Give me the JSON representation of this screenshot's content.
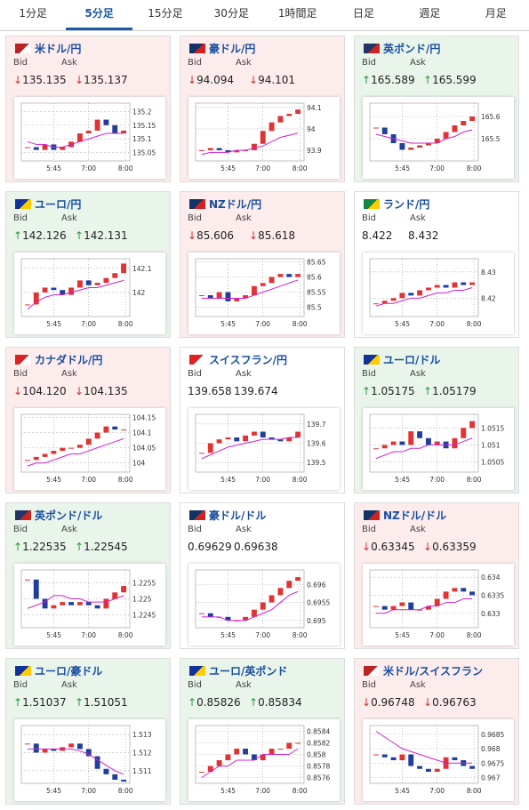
{
  "tabs": [
    "1分足",
    "5分足",
    "15分足",
    "30分足",
    "1時間足",
    "日足",
    "週足",
    "月足"
  ],
  "active_tab": 1,
  "bid_label": "Bid",
  "ask_label": "Ask",
  "chart_xticks": [
    "5:45",
    "7:00",
    "8:00"
  ],
  "panels": [
    {
      "pair": "米ドル/円",
      "trend": "down",
      "arrow": "↓",
      "bid": "135.135",
      "ask": "135.137",
      "ylim": [
        135.02,
        135.23
      ],
      "yticks": [
        135.05,
        135.1,
        135.15,
        135.2
      ],
      "values": [
        135.07,
        135.06,
        135.08,
        135.06,
        135.07,
        135.09,
        135.12,
        135.13,
        135.17,
        135.15,
        135.12,
        135.13
      ],
      "ma": [
        135.09,
        135.08,
        135.08,
        135.07,
        135.07,
        135.08,
        135.09,
        135.1,
        135.11,
        135.12,
        135.12,
        135.12
      ]
    },
    {
      "pair": "豪ドル/円",
      "trend": "down",
      "arrow": "↓",
      "bid": "94.094",
      "ask": "94.101",
      "ylim": [
        93.85,
        94.12
      ],
      "yticks": [
        93.9,
        94,
        94.1
      ],
      "values": [
        93.9,
        93.91,
        93.9,
        93.89,
        93.9,
        93.9,
        93.93,
        93.99,
        94.03,
        94.06,
        94.07,
        94.09
      ],
      "ma": [
        93.88,
        93.89,
        93.89,
        93.89,
        93.9,
        93.9,
        93.91,
        93.92,
        93.94,
        93.96,
        93.97,
        93.98
      ]
    },
    {
      "pair": "英ポンド/円",
      "trend": "up",
      "arrow": "↑",
      "bid": "165.589",
      "ask": "165.599",
      "ylim": [
        165.4,
        165.66
      ],
      "yticks": [
        165.5,
        165.6
      ],
      "values": [
        165.55,
        165.52,
        165.48,
        165.45,
        165.46,
        165.47,
        165.48,
        165.5,
        165.53,
        165.56,
        165.58,
        165.6
      ],
      "ma": [
        165.52,
        165.51,
        165.5,
        165.49,
        165.48,
        165.48,
        165.48,
        165.48,
        165.5,
        165.51,
        165.53,
        165.54
      ]
    },
    {
      "pair": "ユーロ/円",
      "trend": "up",
      "arrow": "↑",
      "bid": "142.126",
      "ask": "142.131",
      "ylim": [
        141.9,
        142.14
      ],
      "yticks": [
        142,
        142.1
      ],
      "values": [
        141.95,
        142,
        142.02,
        142.01,
        141.99,
        142.02,
        142.05,
        142.03,
        142.04,
        142.06,
        142.08,
        142.12
      ],
      "ma": [
        141.93,
        141.96,
        141.98,
        141.99,
        141.99,
        142,
        142.01,
        142.02,
        142.02,
        142.03,
        142.04,
        142.05
      ]
    },
    {
      "pair": "NZドル/円",
      "trend": "down",
      "arrow": "↓",
      "bid": "85.606",
      "ask": "85.618",
      "ylim": [
        85.47,
        85.66
      ],
      "yticks": [
        85.5,
        85.55,
        85.6,
        85.65
      ],
      "values": [
        85.54,
        85.53,
        85.55,
        85.52,
        85.53,
        85.54,
        85.57,
        85.58,
        85.6,
        85.61,
        85.6,
        85.61
      ],
      "ma": [
        85.53,
        85.53,
        85.53,
        85.53,
        85.53,
        85.53,
        85.54,
        85.55,
        85.56,
        85.57,
        85.58,
        85.59
      ]
    },
    {
      "pair": "ランド/円",
      "trend": "flat",
      "arrow": null,
      "bid": "8.422",
      "ask": "8.432",
      "ylim": [
        8.413,
        8.435
      ],
      "yticks": [
        8.42,
        8.43
      ],
      "values": [
        8.418,
        8.419,
        8.42,
        8.422,
        8.421,
        8.423,
        8.424,
        8.425,
        8.424,
        8.426,
        8.425,
        8.426
      ],
      "ma": [
        8.417,
        8.418,
        8.418,
        8.419,
        8.42,
        8.42,
        8.421,
        8.422,
        8.422,
        8.423,
        8.423,
        8.424
      ]
    },
    {
      "pair": "カナダドル/円",
      "trend": "down",
      "arrow": "↓",
      "bid": "104.120",
      "ask": "104.135",
      "ylim": [
        103.97,
        104.16
      ],
      "yticks": [
        104,
        104.05,
        104.1,
        104.15
      ],
      "values": [
        104.01,
        104.02,
        104.03,
        104.04,
        104.05,
        104.05,
        104.06,
        104.08,
        104.1,
        104.12,
        104.11,
        104.11
      ],
      "ma": [
        103.99,
        104,
        104,
        104.01,
        104.02,
        104.03,
        104.03,
        104.04,
        104.05,
        104.06,
        104.07,
        104.08
      ]
    },
    {
      "pair": "スイスフラン/円",
      "trend": "flat",
      "arrow": null,
      "bid": "139.658",
      "ask": "139.674",
      "ylim": [
        139.45,
        139.75
      ],
      "yticks": [
        139.5,
        139.6,
        139.7
      ],
      "values": [
        139.55,
        139.6,
        139.62,
        139.63,
        139.61,
        139.64,
        139.66,
        139.63,
        139.62,
        139.61,
        139.63,
        139.66
      ],
      "ma": [
        139.52,
        139.54,
        139.56,
        139.58,
        139.59,
        139.6,
        139.61,
        139.62,
        139.62,
        139.62,
        139.63,
        139.63
      ]
    },
    {
      "pair": "ユーロ/ドル",
      "trend": "up",
      "arrow": "↑",
      "bid": "1.05175",
      "ask": "1.05179",
      "ylim": [
        1.0502,
        1.0519
      ],
      "yticks": [
        1.0505,
        1.051,
        1.0515
      ],
      "values": [
        1.0509,
        1.051,
        1.0511,
        1.051,
        1.0514,
        1.0512,
        1.051,
        1.0511,
        1.0509,
        1.0512,
        1.0515,
        1.0517
      ],
      "ma": [
        1.0506,
        1.0507,
        1.0508,
        1.0508,
        1.0509,
        1.0509,
        1.051,
        1.051,
        1.051,
        1.051,
        1.0511,
        1.0512
      ]
    },
    {
      "pair": "英ポンド/ドル",
      "trend": "up",
      "arrow": "↑",
      "bid": "1.22535",
      "ask": "1.22545",
      "ylim": [
        1.2241,
        1.2259
      ],
      "yticks": [
        1.2245,
        1.225,
        1.2255
      ],
      "values": [
        1.2256,
        1.225,
        1.2247,
        1.2248,
        1.2249,
        1.2248,
        1.2249,
        1.2248,
        1.2247,
        1.225,
        1.2252,
        1.2254
      ],
      "ma": [
        1.2247,
        1.2248,
        1.2249,
        1.2251,
        1.2251,
        1.225,
        1.225,
        1.2249,
        1.2249,
        1.2249,
        1.225,
        1.2251
      ]
    },
    {
      "pair": "豪ドル/ドル",
      "trend": "flat",
      "arrow": null,
      "bid": "0.69629",
      "ask": "0.69638",
      "ylim": [
        0.6948,
        0.6964
      ],
      "yticks": [
        0.695,
        0.6955,
        0.696
      ],
      "values": [
        0.6952,
        0.6951,
        0.6951,
        0.695,
        0.695,
        0.6951,
        0.6953,
        0.6955,
        0.6957,
        0.6959,
        0.6961,
        0.6962
      ],
      "ma": [
        0.6951,
        0.6951,
        0.6951,
        0.695,
        0.695,
        0.695,
        0.6951,
        0.6952,
        0.6953,
        0.6955,
        0.6957,
        0.6958
      ]
    },
    {
      "pair": "NZドル/ドル",
      "trend": "down",
      "arrow": "↓",
      "bid": "0.63345",
      "ask": "0.63359",
      "ylim": [
        0.6326,
        0.6342
      ],
      "yticks": [
        0.633,
        0.6335,
        0.634
      ],
      "values": [
        0.6332,
        0.6331,
        0.6332,
        0.6333,
        0.6331,
        0.6331,
        0.6332,
        0.6334,
        0.6336,
        0.6337,
        0.6336,
        0.6335
      ],
      "ma": [
        0.633,
        0.633,
        0.6331,
        0.6331,
        0.6331,
        0.6331,
        0.6332,
        0.6332,
        0.6333,
        0.6333,
        0.6334,
        0.6334
      ]
    },
    {
      "pair": "ユーロ/豪ドル",
      "trend": "up",
      "arrow": "↑",
      "bid": "1.51037",
      "ask": "1.51051",
      "ylim": [
        1.5103,
        1.5135
      ],
      "yticks": [
        1.511,
        1.512,
        1.513
      ],
      "values": [
        1.5125,
        1.512,
        1.5122,
        1.5121,
        1.5123,
        1.5125,
        1.5122,
        1.5118,
        1.5111,
        1.5108,
        1.5105,
        1.5104
      ],
      "ma": [
        1.5122,
        1.5122,
        1.5122,
        1.5122,
        1.5122,
        1.5122,
        1.5121,
        1.5119,
        1.5116,
        1.5113,
        1.511,
        1.5108
      ]
    },
    {
      "pair": "ユーロ/英ポンド",
      "trend": "up",
      "arrow": "↑",
      "bid": "0.85826",
      "ask": "0.85834",
      "ylim": [
        0.8575,
        0.8585
      ],
      "yticks": [
        0.8576,
        0.8578,
        0.858,
        0.8582,
        0.8584
      ],
      "values": [
        0.8577,
        0.8578,
        0.8579,
        0.858,
        0.8581,
        0.858,
        0.8579,
        0.858,
        0.8581,
        0.8581,
        0.8582,
        0.8582
      ],
      "ma": [
        0.8576,
        0.8577,
        0.8578,
        0.8578,
        0.8579,
        0.8579,
        0.8579,
        0.858,
        0.858,
        0.858,
        0.858,
        0.8581
      ]
    },
    {
      "pair": "米ドル/スイスフラン",
      "trend": "down",
      "arrow": "↓",
      "bid": "0.96748",
      "ask": "0.96763",
      "ylim": [
        0.9668,
        0.9688
      ],
      "yticks": [
        0.967,
        0.9675,
        0.968,
        0.9685
      ],
      "values": [
        0.9678,
        0.9677,
        0.9676,
        0.9678,
        0.9674,
        0.9673,
        0.9672,
        0.9673,
        0.9677,
        0.9676,
        0.9674,
        0.9673
      ],
      "ma": [
        0.9686,
        0.9684,
        0.9682,
        0.968,
        0.9679,
        0.9678,
        0.9677,
        0.9676,
        0.9675,
        0.9675,
        0.9675,
        0.9675
      ]
    }
  ]
}
